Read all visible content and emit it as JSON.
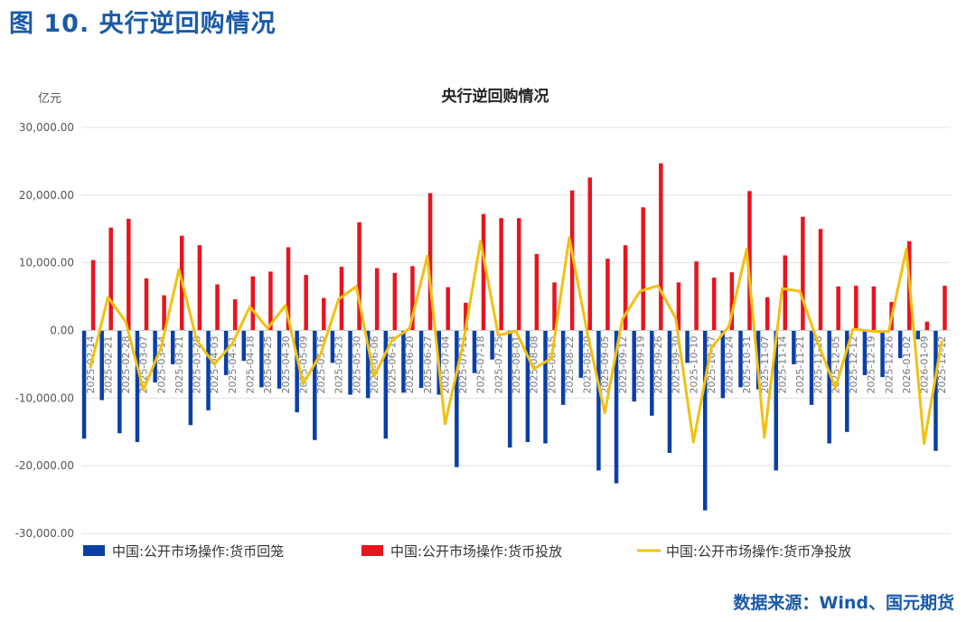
{
  "figure_title": "图 10. 央行逆回购情况",
  "source": "数据来源：Wind、国元期货",
  "chart_data": {
    "type": "bar",
    "title": "央行逆回购情况",
    "ylabel": "亿元",
    "xlabel": "",
    "ylim": [
      -30000,
      30000
    ],
    "yticks": [
      "-30,000.00",
      "-20,000.00",
      "-10,000.00",
      "0.00",
      "10,000.00",
      "20,000.00",
      "30,000.00"
    ],
    "yticks_values": [
      -30000,
      -20000,
      -10000,
      0,
      10000,
      20000,
      30000
    ],
    "grid": true,
    "legend_position": "bottom",
    "categories": [
      "2025-02-14",
      "2025-02-21",
      "2025-02-28",
      "2025-03-07",
      "2025-03-14",
      "2025-03-21",
      "2025-03-28",
      "2025-04-03",
      "2025-04-11",
      "2025-04-18",
      "2025-04-25",
      "2025-04-30",
      "2025-05-09",
      "2025-05-16",
      "2025-05-23",
      "2025-05-30",
      "2025-06-06",
      "2025-06-13",
      "2025-06-20",
      "2025-06-27",
      "2025-07-04",
      "2025-07-11",
      "2025-07-18",
      "2025-07-25",
      "2025-08-01",
      "2025-08-08",
      "2025-08-15",
      "2025-08-22",
      "2025-08-29",
      "2025-09-05",
      "2025-09-12",
      "2025-09-19",
      "2025-09-26",
      "2025-09-30",
      "2025-10-10",
      "2025-10-17",
      "2025-10-24",
      "2025-10-31",
      "2025-11-07",
      "2025-11-14",
      "2025-11-21",
      "2025-11-28",
      "2025-12-05",
      "2025-12-12",
      "2025-12-19",
      "2025-12-26",
      "2026-01-02",
      "2026-01-09",
      "2025-12-12"
    ],
    "series": [
      {
        "name": "中国:公开市场操作:货币回笼",
        "type": "bar",
        "color": "#0a3fa6",
        "values": [
          -16000,
          -10300,
          -15200,
          -16500,
          -7700,
          -5000,
          -14000,
          -11800,
          -6600,
          -4500,
          -8400,
          -8600,
          -12100,
          -16200,
          -4800,
          -9500,
          -10000,
          -16000,
          -9200,
          -8500,
          -9500,
          -20200,
          -6300,
          -4300,
          -17300,
          -16500,
          -16700,
          -11000,
          -7000,
          -20700,
          -22600,
          -10500,
          -12600,
          -18100,
          -4800,
          -26600,
          -10000,
          -8400,
          -8700,
          -20700,
          -5000,
          -11000,
          -16700,
          -15000,
          -6600,
          -6900,
          -4100,
          -1300,
          -17800
        ]
      },
      {
        "name": "中国:公开市场操作:货币投放",
        "type": "bar",
        "color": "#e8141e",
        "values": [
          10400,
          15200,
          16500,
          7700,
          5200,
          14000,
          12600,
          6800,
          4600,
          8000,
          8700,
          12300,
          8200,
          4800,
          9400,
          16000,
          9200,
          8500,
          9500,
          20300,
          6400,
          4100,
          17200,
          16600,
          16600,
          11300,
          7100,
          20700,
          22600,
          10600,
          12600,
          18200,
          24700,
          7100,
          10200,
          7800,
          8600,
          20600,
          4900,
          11100,
          16800,
          15000,
          6500,
          6600,
          6500,
          4200,
          13200,
          1300,
          6600
        ]
      },
      {
        "name": "中国:公开市场操作:货币净投放",
        "type": "line",
        "color": "#f2c012",
        "values": [
          -5600,
          4900,
          1300,
          -8800,
          -2500,
          9000,
          -1400,
          -5000,
          -2000,
          3500,
          300,
          3700,
          -7900,
          -3400,
          4600,
          6500,
          -6800,
          -1500,
          300,
          11000,
          -13800,
          -2200,
          13200,
          -700,
          -100,
          -5700,
          -4100,
          13700,
          -100,
          -12200,
          1700,
          5800,
          6600,
          1800,
          -16500,
          -2600,
          600,
          12000,
          -15800,
          6200,
          5800,
          -1700,
          -8500,
          200,
          -100,
          -200,
          12000,
          -16700,
          -1500
        ]
      }
    ]
  }
}
